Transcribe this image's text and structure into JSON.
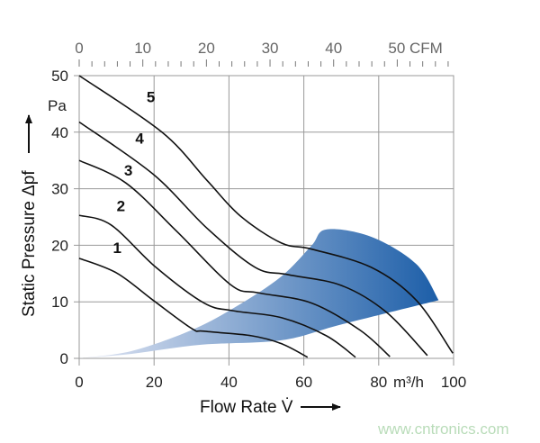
{
  "chart_data": {
    "type": "line",
    "xlabel": "Flow Rate V̇",
    "xunit": "m³/h",
    "ylabel": "Static Pressure Δpf",
    "yunit": "Pa",
    "xlim": [
      0,
      100
    ],
    "ylim": [
      0,
      50
    ],
    "x_ticks": [
      "0",
      "20",
      "40",
      "60",
      "80",
      "100"
    ],
    "y_ticks": [
      "0",
      "10",
      "20",
      "30",
      "40",
      "50"
    ],
    "top_axis": {
      "unit": "CFM",
      "ticks": [
        "0",
        "10",
        "20",
        "30",
        "40",
        "50"
      ],
      "m3h_per_cfm": 1.699
    },
    "grid": true,
    "series": [
      {
        "name": "1",
        "points": [
          [
            0,
            17.7
          ],
          [
            10,
            15.1
          ],
          [
            19.7,
            10.3
          ],
          [
            30,
            5.3
          ],
          [
            33.3,
            4.8
          ],
          [
            46,
            4
          ],
          [
            54,
            2.6
          ],
          [
            61,
            0.2
          ]
        ]
      },
      {
        "name": "2",
        "points": [
          [
            0,
            25.3
          ],
          [
            8.5,
            23.6
          ],
          [
            20.5,
            16.1
          ],
          [
            33.3,
            9.8
          ],
          [
            41.3,
            8.4
          ],
          [
            54,
            7.2
          ],
          [
            66,
            4
          ],
          [
            73.8,
            0.2
          ]
        ]
      },
      {
        "name": "3",
        "points": [
          [
            0,
            35
          ],
          [
            12.5,
            31
          ],
          [
            26,
            22.5
          ],
          [
            40.5,
            13
          ],
          [
            47.8,
            11.6
          ],
          [
            62,
            9.8
          ],
          [
            75,
            5
          ],
          [
            83,
            0.3
          ]
        ]
      },
      {
        "name": "4",
        "points": [
          [
            0,
            41.8
          ],
          [
            19.7,
            32.6
          ],
          [
            34,
            23.1
          ],
          [
            47,
            16.1
          ],
          [
            55.8,
            14.8
          ],
          [
            70,
            12.9
          ],
          [
            82,
            8.2
          ],
          [
            93,
            0.5
          ]
        ]
      },
      {
        "name": "5",
        "points": [
          [
            0,
            50
          ],
          [
            22.1,
            40
          ],
          [
            34.1,
            31.5
          ],
          [
            43,
            25.2
          ],
          [
            54,
            20.4
          ],
          [
            62.2,
            19.3
          ],
          [
            78,
            16.1
          ],
          [
            90,
            10.3
          ],
          [
            99.8,
            0.9
          ]
        ]
      }
    ],
    "operating_region": {
      "upper": [
        [
          0,
          0
        ],
        [
          14,
          1.3
        ],
        [
          30,
          5
        ],
        [
          42,
          9.2
        ],
        [
          54,
          14.5
        ],
        [
          62,
          19.9
        ],
        [
          66,
          22.8
        ],
        [
          78,
          21.5
        ],
        [
          90,
          16.7
        ],
        [
          96,
          10.3
        ]
      ],
      "lower": [
        [
          96,
          10.3
        ],
        [
          70,
          6
        ],
        [
          54,
          3.2
        ],
        [
          32.5,
          2.4
        ],
        [
          14,
          0.8
        ],
        [
          0,
          0
        ]
      ],
      "color_light": "#e3e7f4",
      "color_dark": "#1c5ea8"
    },
    "line_color": "#111111"
  },
  "watermark": "www.cntronics.com"
}
